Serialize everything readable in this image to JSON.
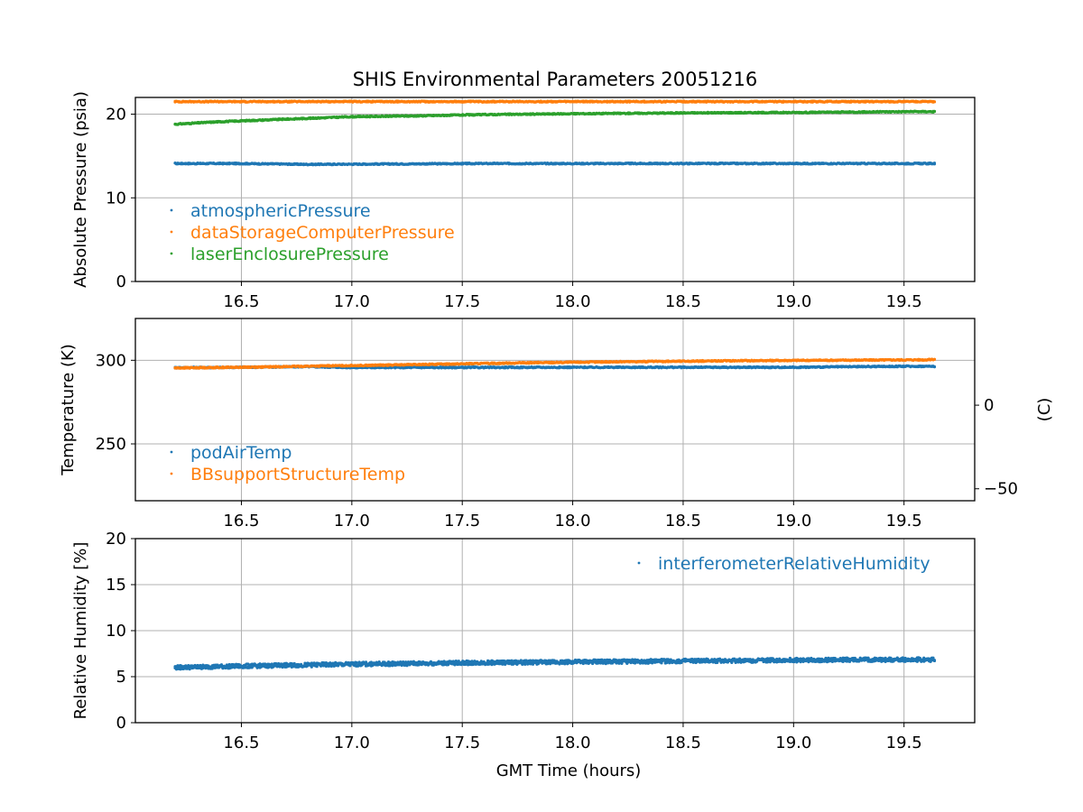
{
  "title": "SHIS Environmental Parameters 20051216",
  "colors": {
    "blue": "#1f77b4",
    "orange": "#ff7f0e",
    "green": "#2ca02c",
    "grid": "#b0b0b0",
    "axis": "#000000"
  },
  "chart_data": [
    {
      "type": "scatter",
      "ylabel": "Absolute Pressure (psia)",
      "xlabel": "",
      "xlim": [
        16.02,
        19.82
      ],
      "ylim": [
        0,
        22
      ],
      "x_ticks": [
        16.5,
        17.0,
        17.5,
        18.0,
        18.5,
        19.0,
        19.5
      ],
      "x_tick_labels": [
        "16.5",
        "17.0",
        "17.5",
        "18.0",
        "18.5",
        "19.0",
        "19.5"
      ],
      "y_ticks": [
        0,
        10,
        20
      ],
      "y_tick_labels": [
        "0",
        "10",
        "20"
      ],
      "grid": true,
      "legend_position": "lower-left",
      "series": [
        {
          "name": "atmosphericPressure",
          "color": "blue",
          "x": [
            16.2,
            16.5,
            16.8,
            17.2,
            17.6,
            18.0,
            18.5,
            19.0,
            19.4,
            19.64
          ],
          "y": [
            14.1,
            14.1,
            14.0,
            14.05,
            14.1,
            14.1,
            14.1,
            14.1,
            14.1,
            14.1
          ]
        },
        {
          "name": "dataStorageComputerPressure",
          "color": "orange",
          "x": [
            16.2,
            16.6,
            17.0,
            17.5,
            18.0,
            18.5,
            19.0,
            19.5,
            19.64
          ],
          "y": [
            21.5,
            21.5,
            21.5,
            21.5,
            21.5,
            21.5,
            21.5,
            21.5,
            21.5
          ]
        },
        {
          "name": "laserEnclosurePressure",
          "color": "green",
          "x": [
            16.2,
            16.4,
            16.6,
            16.8,
            17.0,
            17.3,
            17.6,
            18.0,
            18.5,
            19.0,
            19.5,
            19.64
          ],
          "y": [
            18.8,
            19.1,
            19.3,
            19.5,
            19.7,
            19.8,
            19.95,
            20.05,
            20.15,
            20.2,
            20.3,
            20.3
          ]
        }
      ]
    },
    {
      "type": "scatter",
      "ylabel": "Temperature (K)",
      "y2label": "(C)",
      "xlabel": "",
      "xlim": [
        16.02,
        19.82
      ],
      "ylim": [
        216,
        325
      ],
      "y2_offset": 273.15,
      "x_ticks": [
        16.5,
        17.0,
        17.5,
        18.0,
        18.5,
        19.0,
        19.5
      ],
      "x_tick_labels": [
        "16.5",
        "17.0",
        "17.5",
        "18.0",
        "18.5",
        "19.0",
        "19.5"
      ],
      "y_ticks": [
        250,
        300
      ],
      "y_tick_labels": [
        "250",
        "300"
      ],
      "y2_ticks": [
        0,
        -50
      ],
      "y2_tick_labels": [
        "0",
        "−50"
      ],
      "grid": true,
      "legend_position": "lower-left",
      "series": [
        {
          "name": "podAirTemp",
          "color": "blue",
          "x": [
            16.2,
            16.5,
            16.8,
            17.0,
            17.5,
            18.0,
            18.5,
            19.0,
            19.3,
            19.5,
            19.64
          ],
          "y": [
            295.6,
            295.8,
            296.2,
            295.7,
            295.7,
            295.8,
            295.8,
            295.8,
            296.2,
            296.4,
            296.4
          ]
        },
        {
          "name": "BBsupportStructureTemp",
          "color": "orange",
          "x": [
            16.2,
            16.6,
            16.9,
            17.15,
            17.45,
            17.8,
            18.2,
            18.8,
            19.6,
            19.64
          ],
          "y": [
            295.4,
            296.0,
            296.7,
            297.1,
            297.8,
            298.5,
            299.1,
            299.8,
            300.3,
            300.6
          ]
        }
      ]
    },
    {
      "type": "scatter",
      "ylabel": "Relative Humidity [%]",
      "xlabel": "GMT Time (hours)",
      "xlim": [
        16.02,
        19.82
      ],
      "ylim": [
        0,
        20
      ],
      "x_ticks": [
        16.5,
        17.0,
        17.5,
        18.0,
        18.5,
        19.0,
        19.5
      ],
      "x_tick_labels": [
        "16.5",
        "17.0",
        "17.5",
        "18.0",
        "18.5",
        "19.0",
        "19.5"
      ],
      "y_ticks": [
        0,
        5,
        10,
        15,
        20
      ],
      "y_tick_labels": [
        "0",
        "5",
        "10",
        "15",
        "20"
      ],
      "grid": true,
      "legend_position": "upper-right",
      "series": [
        {
          "name": "interferometerRelativeHumidity",
          "color": "blue",
          "x": [
            16.2,
            16.5,
            17.0,
            17.5,
            18.0,
            18.5,
            19.0,
            19.5,
            19.64
          ],
          "y": [
            6.0,
            6.15,
            6.35,
            6.5,
            6.6,
            6.7,
            6.8,
            6.85,
            6.85
          ]
        }
      ]
    }
  ]
}
